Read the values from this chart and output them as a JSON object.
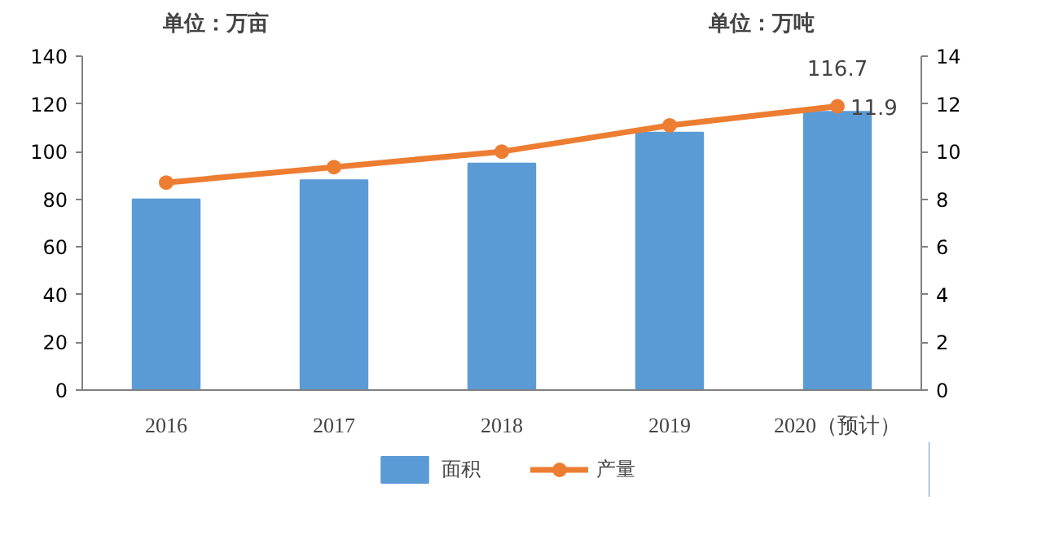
{
  "chart_data": {
    "type": "bar",
    "categories": [
      "2016",
      "2017",
      "2018",
      "2019",
      "2020（预计）"
    ],
    "ylabel": "单位：万亩",
    "y2label": "单位：万吨",
    "ylim": [
      0,
      140
    ],
    "yticks": [
      0,
      20,
      40,
      60,
      80,
      100,
      120,
      140
    ],
    "y2lim": [
      0,
      14
    ],
    "y2ticks": [
      0,
      2,
      4,
      6,
      8,
      10,
      12,
      14
    ],
    "series": [
      {
        "name": "面积",
        "color": "#5b9bd5",
        "values": [
          80,
          88,
          95,
          108,
          116.7
        ],
        "value_labels": [
          null,
          null,
          null,
          null,
          "116.7"
        ]
      },
      {
        "name": "产量",
        "type": "line",
        "axis": "y2",
        "color": "#ed7d31",
        "marker": "circle",
        "values": [
          8.7,
          9.35,
          10.0,
          11.1,
          11.9
        ],
        "value_labels": [
          null,
          null,
          null,
          null,
          "11.9"
        ]
      }
    ],
    "grid": false,
    "legend": "bottom"
  }
}
